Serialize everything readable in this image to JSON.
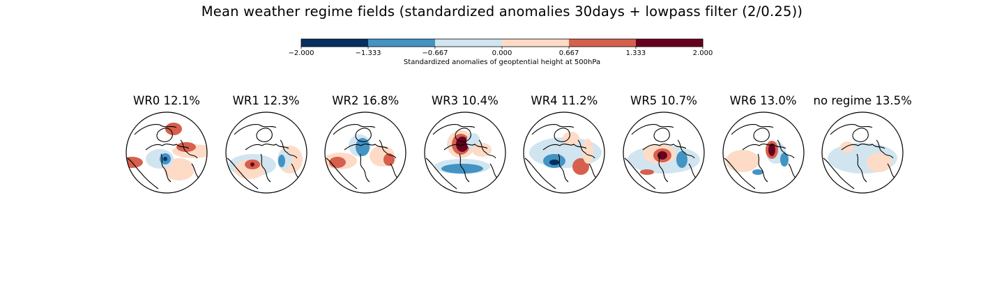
{
  "figure": {
    "title": "Mean weather regime fields (standardized anomalies 30days + lowpass filter (2/0.25))"
  },
  "colorbar": {
    "label": "Standardized anomalies of geoptential height at 500hPa",
    "ticks": [
      "−2.000",
      "−1.333",
      "−0.667",
      "0.000",
      "0.667",
      "1.333",
      "2.000"
    ],
    "bounds": [
      -2.0,
      -1.333,
      -0.667,
      0.0,
      0.667,
      1.333,
      2.0
    ],
    "colors": [
      "#053061",
      "#4393c3",
      "#d1e5f0",
      "#fddbc7",
      "#d6604d",
      "#67001f"
    ]
  },
  "chart_data": {
    "type": "heatmap",
    "projection": "north polar stereographic",
    "variable": "geopotential height at 500hPa standardized anomaly",
    "value_range": [
      -2.0,
      2.0
    ],
    "panels": [
      {
        "name": "WR0",
        "frequency_label": "WR0 12.1%",
        "frequency_pct": 12.1
      },
      {
        "name": "WR1",
        "frequency_label": "WR1 12.3%",
        "frequency_pct": 12.3
      },
      {
        "name": "WR2",
        "frequency_label": "WR2 16.8%",
        "frequency_pct": 16.8
      },
      {
        "name": "WR3",
        "frequency_label": "WR3 10.4%",
        "frequency_pct": 10.4
      },
      {
        "name": "WR4",
        "frequency_label": "WR4 11.2%",
        "frequency_pct": 11.2
      },
      {
        "name": "WR5",
        "frequency_label": "WR5 10.7%",
        "frequency_pct": 10.7
      },
      {
        "name": "WR6",
        "frequency_label": "WR6 13.0%",
        "frequency_pct": 13.0
      },
      {
        "name": "no regime",
        "frequency_label": "no regime 13.5%",
        "frequency_pct": 13.5
      }
    ]
  }
}
